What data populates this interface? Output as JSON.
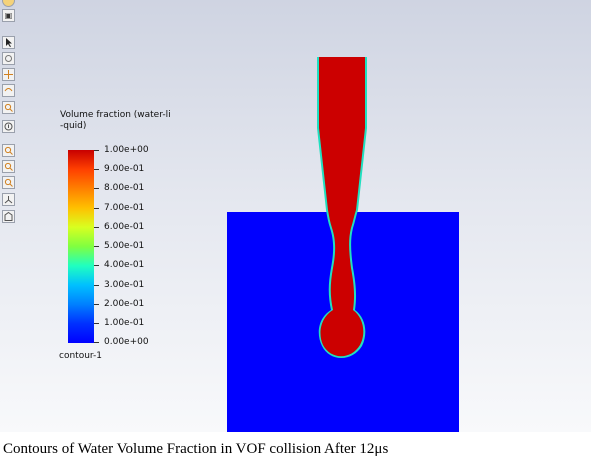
{
  "viewport": {
    "legend": {
      "title_line1": "Volume fraction (water-li",
      "title_line2": "-quid)",
      "ticks": [
        "1.00e+00",
        "9.00e-01",
        "8.00e-01",
        "7.00e-01",
        "6.00e-01",
        "5.00e-01",
        "4.00e-01",
        "3.00e-01",
        "2.00e-01",
        "1.00e-01",
        "0.00e+00"
      ],
      "contour_name": "contour-1"
    },
    "colors": {
      "water": "#cc0000",
      "air": "#0000ff",
      "interface": "#20e0c0"
    },
    "toolbar_icons": [
      "pointer-icon",
      "rotate-icon",
      "pan-icon",
      "orbit-icon",
      "zoom-icon",
      "fit-icon",
      "zoom-in-icon",
      "zoom-box-icon",
      "zoom-out-icon",
      "axes-icon",
      "view-icon"
    ]
  },
  "caption": "Contours of Water Volume Fraction in VOF collision After 12μs"
}
